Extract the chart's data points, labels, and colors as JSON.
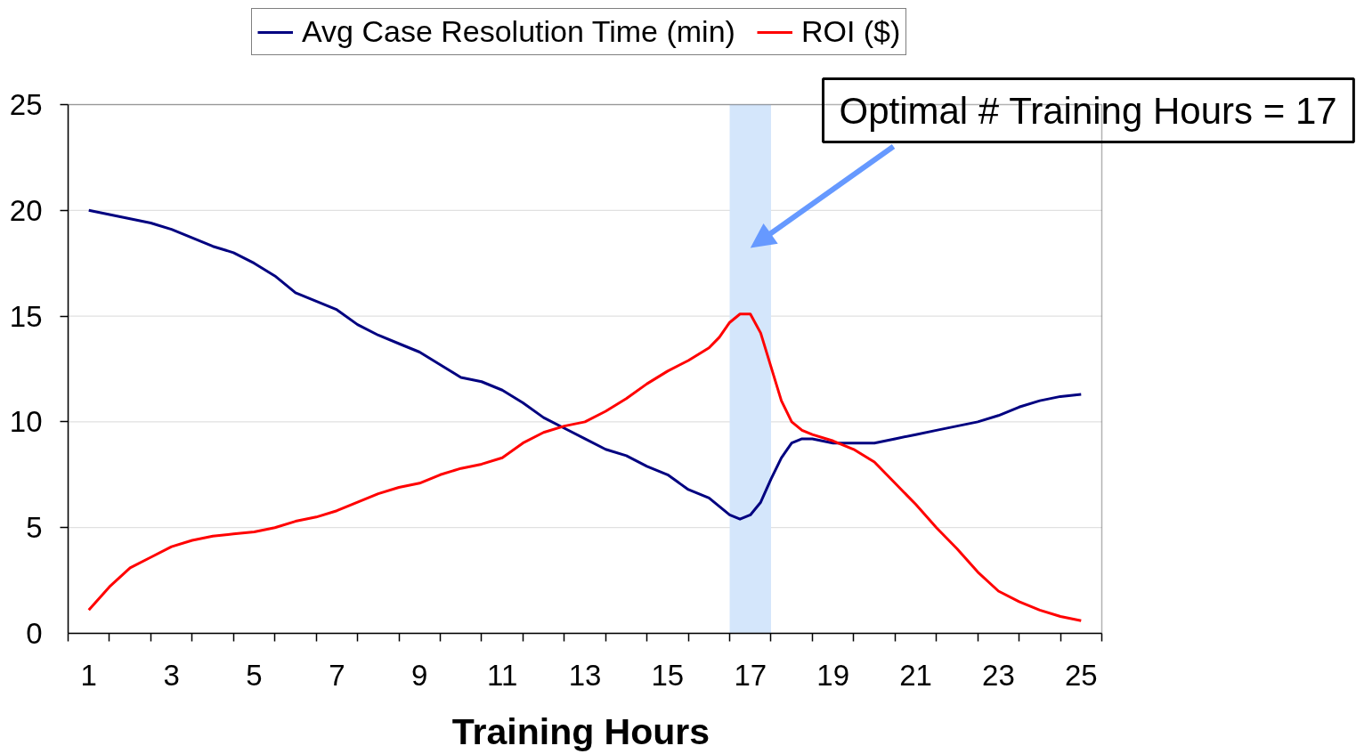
{
  "chart_data": {
    "type": "line",
    "xlabel": "Training Hours",
    "x": [
      1,
      1.5,
      2,
      2.5,
      3,
      3.5,
      4,
      4.5,
      5,
      5.5,
      6,
      6.5,
      7,
      7.5,
      8,
      8.5,
      9,
      9.5,
      10,
      10.5,
      11,
      11.5,
      12,
      12.5,
      13,
      13.5,
      14,
      14.5,
      15,
      15.5,
      16,
      16.25,
      16.5,
      16.75,
      17,
      17.25,
      17.5,
      17.75,
      18,
      18.25,
      18.5,
      19,
      19.5,
      20,
      20.5,
      21,
      21.5,
      22,
      22.5,
      23,
      23.5,
      24,
      24.5,
      25
    ],
    "series": [
      {
        "name": "Avg Case Resolution Time (min)",
        "color": "#000080",
        "values": [
          20.0,
          19.8,
          19.6,
          19.4,
          19.1,
          18.7,
          18.3,
          18.0,
          17.5,
          16.9,
          16.1,
          15.7,
          15.3,
          14.6,
          14.1,
          13.7,
          13.3,
          12.7,
          12.1,
          11.9,
          11.5,
          10.9,
          10.2,
          9.7,
          9.2,
          8.7,
          8.4,
          7.9,
          7.5,
          6.8,
          6.4,
          6.0,
          5.6,
          5.4,
          5.6,
          6.2,
          7.3,
          8.3,
          9.0,
          9.2,
          9.2,
          9.0,
          9.0,
          9.0,
          9.2,
          9.4,
          9.6,
          9.8,
          10.0,
          10.3,
          10.7,
          11.0,
          11.2,
          11.3
        ]
      },
      {
        "name": "ROI ($)",
        "color": "#ff0000",
        "values": [
          1.1,
          2.2,
          3.1,
          3.6,
          4.1,
          4.4,
          4.6,
          4.7,
          4.8,
          5.0,
          5.3,
          5.5,
          5.8,
          6.2,
          6.6,
          6.9,
          7.1,
          7.5,
          7.8,
          8.0,
          8.3,
          9.0,
          9.5,
          9.8,
          10.0,
          10.5,
          11.1,
          11.8,
          12.4,
          12.9,
          13.5,
          14.0,
          14.7,
          15.1,
          15.1,
          14.2,
          12.6,
          11.0,
          10.0,
          9.6,
          9.4,
          9.1,
          8.7,
          8.1,
          7.1,
          6.1,
          5.0,
          4.0,
          2.9,
          2.0,
          1.5,
          1.1,
          0.8,
          0.6
        ]
      }
    ],
    "xlim": [
      0.5,
      25.5
    ],
    "xticks": [
      {
        "value": 0.5,
        "label": null
      },
      {
        "value": 1,
        "label": "1"
      },
      {
        "value": 1.5,
        "label": null
      },
      {
        "value": 2.5,
        "label": null
      },
      {
        "value": 3,
        "label": "3"
      },
      {
        "value": 3.5,
        "label": null
      },
      {
        "value": 4.5,
        "label": null
      },
      {
        "value": 5,
        "label": "5"
      },
      {
        "value": 5.5,
        "label": null
      },
      {
        "value": 6.5,
        "label": null
      },
      {
        "value": 7,
        "label": "7"
      },
      {
        "value": 7.5,
        "label": null
      },
      {
        "value": 8.5,
        "label": null
      },
      {
        "value": 9,
        "label": "9"
      },
      {
        "value": 9.5,
        "label": null
      },
      {
        "value": 10.5,
        "label": null
      },
      {
        "value": 11,
        "label": "11"
      },
      {
        "value": 11.5,
        "label": null
      },
      {
        "value": 12.5,
        "label": null
      },
      {
        "value": 13,
        "label": "13"
      },
      {
        "value": 13.5,
        "label": null
      },
      {
        "value": 14.5,
        "label": null
      },
      {
        "value": 15,
        "label": "15"
      },
      {
        "value": 15.5,
        "label": null
      },
      {
        "value": 16.5,
        "label": null
      },
      {
        "value": 17,
        "label": "17"
      },
      {
        "value": 17.5,
        "label": null
      },
      {
        "value": 18.5,
        "label": null
      },
      {
        "value": 19,
        "label": "19"
      },
      {
        "value": 19.5,
        "label": null
      },
      {
        "value": 20.5,
        "label": null
      },
      {
        "value": 21,
        "label": "21"
      },
      {
        "value": 21.5,
        "label": null
      },
      {
        "value": 22.5,
        "label": null
      },
      {
        "value": 23,
        "label": "23"
      },
      {
        "value": 23.5,
        "label": null
      },
      {
        "value": 24.5,
        "label": null
      },
      {
        "value": 25,
        "label": "25"
      },
      {
        "value": 25.5,
        "label": null
      }
    ],
    "ylim": [
      0,
      25
    ],
    "yticks": [
      0,
      5,
      10,
      15,
      20,
      25
    ],
    "grid": "y",
    "legend": "top",
    "bands": [
      {
        "axis": "x",
        "from": 16.5,
        "to": 17.5,
        "color": "#d4e6fb"
      }
    ],
    "annotations": [
      "Optimal # Training Hours = 17"
    ]
  }
}
